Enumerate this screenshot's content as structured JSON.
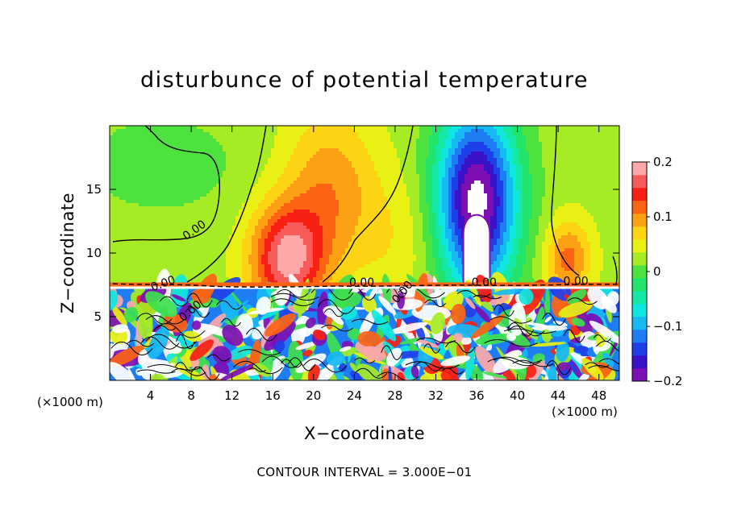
{
  "chart_data": {
    "type": "heatmap",
    "title": "disturbunce of potential temperature",
    "xlabel": "X−coordinate",
    "ylabel": "Z−coordinate",
    "x_unit": "(×1000 m)",
    "x_unit_right": "(×1000 m)",
    "xlim": [
      0,
      50
    ],
    "ylim": [
      0,
      20
    ],
    "xticks": [
      4,
      8,
      12,
      16,
      20,
      24,
      28,
      32,
      36,
      40,
      44,
      48
    ],
    "yticks": [
      5,
      10,
      15
    ],
    "colorbar": {
      "range": [
        -0.2,
        0.2
      ],
      "ticks": [
        -0.2,
        -0.1,
        0,
        0.1,
        0.2
      ],
      "tick_labels": [
        "−0.2",
        "−0.1",
        "0",
        "0.1",
        "0.2"
      ],
      "colors": [
        "#7d0fb4",
        "#3a12c8",
        "#1f3fe8",
        "#1f7df4",
        "#16b9f4",
        "#10e6e0",
        "#14e8a4",
        "#22e46a",
        "#4ee23e",
        "#a6ec24",
        "#e8f014",
        "#fcd414",
        "#fca014",
        "#fc6414",
        "#f82014",
        "#f85a5a",
        "#fca8a8"
      ]
    },
    "contour_labels": [
      "0.00",
      "0.00",
      "0.00",
      "0.00",
      "0.00",
      "0.00",
      "0.00"
    ],
    "features": [
      {
        "kind": "warm-plume",
        "x": 18,
        "z_top": 15,
        "value": 0.15
      },
      {
        "kind": "cold-plume",
        "x": 36,
        "z_top": 18,
        "value": -0.2
      },
      {
        "kind": "warm-plume",
        "x": 45,
        "z_top": 12,
        "value": 0.1
      },
      {
        "kind": "warm-band",
        "x": 22,
        "z_top": 18,
        "value": 0.07
      },
      {
        "kind": "boundary-layer",
        "z_top": 7.5,
        "note": "turbulent"
      }
    ],
    "footer": "CONTOUR INTERVAL = 3.000E−01"
  }
}
